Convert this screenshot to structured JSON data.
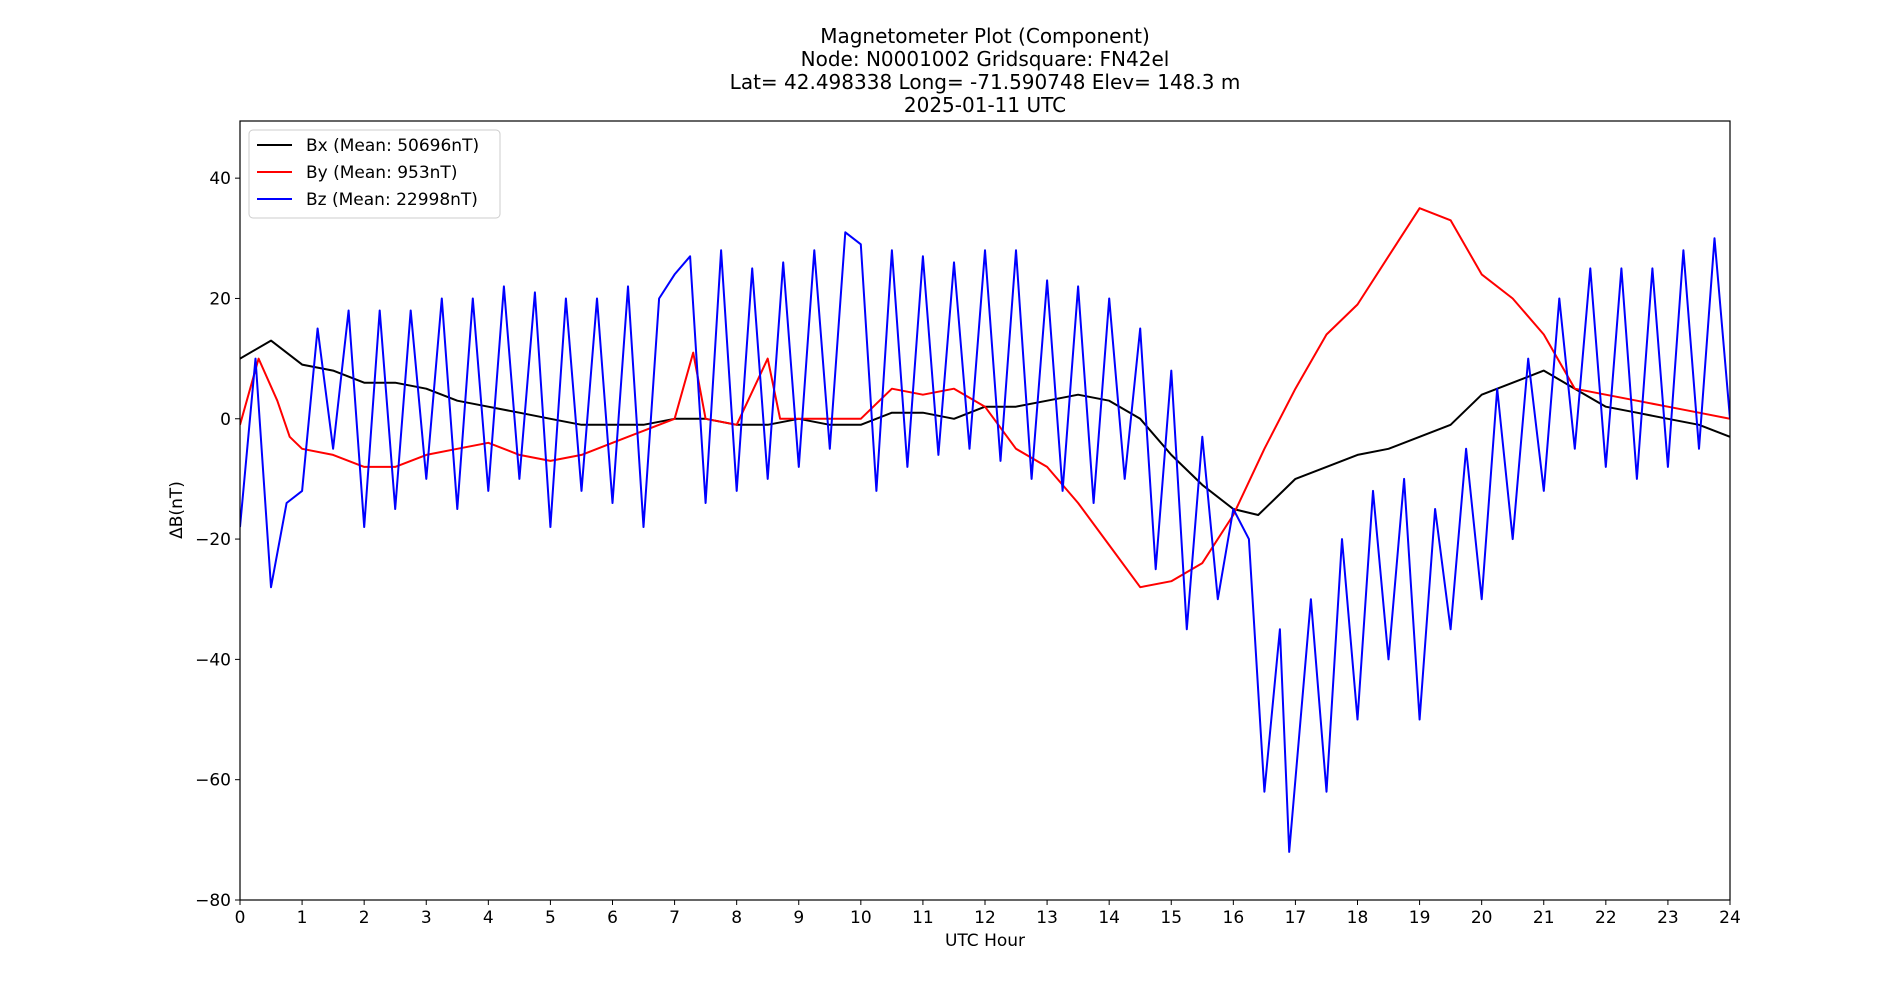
{
  "chart_data": {
    "type": "line",
    "title_lines": [
      "Magnetometer Plot (Component)",
      "Node:  N0001002     Gridsquare:  FN42el",
      "Lat= 42.498338    Long= -71.590748    Elev= 148.3 m",
      "2025-01-11  UTC"
    ],
    "xlabel": "UTC Hour",
    "ylabel": "ΔB(nT)",
    "xlim": [
      0,
      24
    ],
    "ylim": [
      -80,
      49.5
    ],
    "xticks": [
      0,
      1,
      2,
      3,
      4,
      5,
      6,
      7,
      8,
      9,
      10,
      11,
      12,
      13,
      14,
      15,
      16,
      17,
      18,
      19,
      20,
      21,
      22,
      23,
      24
    ],
    "yticks": [
      -80,
      -60,
      -40,
      -20,
      0,
      20,
      40
    ],
    "ytick_labels": [
      "−80",
      "−60",
      "−40",
      "−20",
      "0",
      "20",
      "40"
    ],
    "grid": false,
    "legend_position": "top-left",
    "series": [
      {
        "name": "Bx (Mean: 50696nT)",
        "color": "#000000",
        "points": [
          [
            0,
            10
          ],
          [
            0.5,
            13
          ],
          [
            1,
            9
          ],
          [
            1.5,
            8
          ],
          [
            2,
            6
          ],
          [
            2.5,
            6
          ],
          [
            3,
            5
          ],
          [
            3.5,
            3
          ],
          [
            4,
            2
          ],
          [
            4.5,
            1
          ],
          [
            5,
            0
          ],
          [
            5.5,
            -1
          ],
          [
            6,
            -1
          ],
          [
            6.5,
            -1
          ],
          [
            7,
            0
          ],
          [
            7.5,
            0
          ],
          [
            8,
            -1
          ],
          [
            8.5,
            -1
          ],
          [
            9,
            0
          ],
          [
            9.5,
            -1
          ],
          [
            10,
            -1
          ],
          [
            10.5,
            1
          ],
          [
            11,
            1
          ],
          [
            11.5,
            0
          ],
          [
            12,
            2
          ],
          [
            12.5,
            2
          ],
          [
            13,
            3
          ],
          [
            13.5,
            4
          ],
          [
            14,
            3
          ],
          [
            14.5,
            0
          ],
          [
            15,
            -6
          ],
          [
            15.5,
            -11
          ],
          [
            16,
            -15
          ],
          [
            16.4,
            -16
          ],
          [
            16.7,
            -13
          ],
          [
            17,
            -10
          ],
          [
            17.5,
            -8
          ],
          [
            18,
            -6
          ],
          [
            18.5,
            -5
          ],
          [
            19,
            -3
          ],
          [
            19.5,
            -1
          ],
          [
            20,
            4
          ],
          [
            20.5,
            6
          ],
          [
            21,
            8
          ],
          [
            21.5,
            5
          ],
          [
            22,
            2
          ],
          [
            22.5,
            1
          ],
          [
            23,
            0
          ],
          [
            23.5,
            -1
          ],
          [
            24,
            -3
          ]
        ]
      },
      {
        "name": "By (Mean: 953nT)",
        "color": "#ff0000",
        "points": [
          [
            0,
            -1
          ],
          [
            0.3,
            10
          ],
          [
            0.6,
            3
          ],
          [
            0.8,
            -3
          ],
          [
            1,
            -5
          ],
          [
            1.5,
            -6
          ],
          [
            2,
            -8
          ],
          [
            2.5,
            -8
          ],
          [
            3,
            -6
          ],
          [
            3.5,
            -5
          ],
          [
            4,
            -4
          ],
          [
            4.5,
            -6
          ],
          [
            5,
            -7
          ],
          [
            5.5,
            -6
          ],
          [
            6,
            -4
          ],
          [
            6.5,
            -2
          ],
          [
            7,
            0
          ],
          [
            7.3,
            11
          ],
          [
            7.5,
            0
          ],
          [
            8,
            -1
          ],
          [
            8.5,
            10
          ],
          [
            8.7,
            0
          ],
          [
            9,
            0
          ],
          [
            9.5,
            0
          ],
          [
            10,
            0
          ],
          [
            10.5,
            5
          ],
          [
            11,
            4
          ],
          [
            11.5,
            5
          ],
          [
            12,
            2
          ],
          [
            12.5,
            -5
          ],
          [
            13,
            -8
          ],
          [
            13.5,
            -14
          ],
          [
            14,
            -21
          ],
          [
            14.5,
            -28
          ],
          [
            15,
            -27
          ],
          [
            15.5,
            -24
          ],
          [
            16,
            -16
          ],
          [
            16.5,
            -5
          ],
          [
            17,
            5
          ],
          [
            17.5,
            14
          ],
          [
            18,
            19
          ],
          [
            18.5,
            27
          ],
          [
            19,
            35
          ],
          [
            19.5,
            33
          ],
          [
            20,
            24
          ],
          [
            20.5,
            20
          ],
          [
            21,
            14
          ],
          [
            21.5,
            5
          ],
          [
            22,
            4
          ],
          [
            22.5,
            3
          ],
          [
            23,
            2
          ],
          [
            23.5,
            1
          ],
          [
            24,
            0
          ]
        ]
      },
      {
        "name": "Bz (Mean: 22998nT)",
        "color": "#0000ff",
        "points": [
          [
            0,
            -18
          ],
          [
            0.25,
            10
          ],
          [
            0.5,
            -28
          ],
          [
            0.75,
            -14
          ],
          [
            1,
            -12
          ],
          [
            1.25,
            15
          ],
          [
            1.5,
            -5
          ],
          [
            1.75,
            18
          ],
          [
            2,
            -18
          ],
          [
            2.25,
            18
          ],
          [
            2.5,
            -15
          ],
          [
            2.75,
            18
          ],
          [
            3,
            -10
          ],
          [
            3.25,
            20
          ],
          [
            3.5,
            -15
          ],
          [
            3.75,
            20
          ],
          [
            4,
            -12
          ],
          [
            4.25,
            22
          ],
          [
            4.5,
            -10
          ],
          [
            4.75,
            21
          ],
          [
            5,
            -18
          ],
          [
            5.25,
            20
          ],
          [
            5.5,
            -12
          ],
          [
            5.75,
            20
          ],
          [
            6,
            -14
          ],
          [
            6.25,
            22
          ],
          [
            6.5,
            -18
          ],
          [
            6.75,
            20
          ],
          [
            7,
            24
          ],
          [
            7.25,
            27
          ],
          [
            7.5,
            -14
          ],
          [
            7.75,
            28
          ],
          [
            8,
            -12
          ],
          [
            8.25,
            25
          ],
          [
            8.5,
            -10
          ],
          [
            8.75,
            26
          ],
          [
            9,
            -8
          ],
          [
            9.25,
            28
          ],
          [
            9.5,
            -5
          ],
          [
            9.75,
            31
          ],
          [
            10,
            29
          ],
          [
            10.25,
            -12
          ],
          [
            10.5,
            28
          ],
          [
            10.75,
            -8
          ],
          [
            11,
            27
          ],
          [
            11.25,
            -6
          ],
          [
            11.5,
            26
          ],
          [
            11.75,
            -5
          ],
          [
            12,
            28
          ],
          [
            12.25,
            -7
          ],
          [
            12.5,
            28
          ],
          [
            12.75,
            -10
          ],
          [
            13,
            23
          ],
          [
            13.25,
            -12
          ],
          [
            13.5,
            22
          ],
          [
            13.75,
            -14
          ],
          [
            14,
            20
          ],
          [
            14.25,
            -10
          ],
          [
            14.5,
            15
          ],
          [
            14.75,
            -25
          ],
          [
            15,
            8
          ],
          [
            15.25,
            -35
          ],
          [
            15.5,
            -3
          ],
          [
            15.75,
            -30
          ],
          [
            16,
            -15
          ],
          [
            16.25,
            -20
          ],
          [
            16.5,
            -62
          ],
          [
            16.75,
            -35
          ],
          [
            16.9,
            -72
          ],
          [
            17,
            -60
          ],
          [
            17.25,
            -30
          ],
          [
            17.5,
            -62
          ],
          [
            17.75,
            -20
          ],
          [
            18,
            -50
          ],
          [
            18.25,
            -12
          ],
          [
            18.5,
            -40
          ],
          [
            18.75,
            -10
          ],
          [
            19,
            -50
          ],
          [
            19.25,
            -15
          ],
          [
            19.5,
            -35
          ],
          [
            19.75,
            -5
          ],
          [
            20,
            -30
          ],
          [
            20.25,
            5
          ],
          [
            20.5,
            -20
          ],
          [
            20.75,
            10
          ],
          [
            21,
            -12
          ],
          [
            21.25,
            20
          ],
          [
            21.5,
            -5
          ],
          [
            21.75,
            25
          ],
          [
            22,
            -8
          ],
          [
            22.25,
            25
          ],
          [
            22.5,
            -10
          ],
          [
            22.75,
            25
          ],
          [
            23,
            -8
          ],
          [
            23.25,
            28
          ],
          [
            23.5,
            -5
          ],
          [
            23.75,
            30
          ],
          [
            24,
            0
          ]
        ]
      }
    ]
  }
}
